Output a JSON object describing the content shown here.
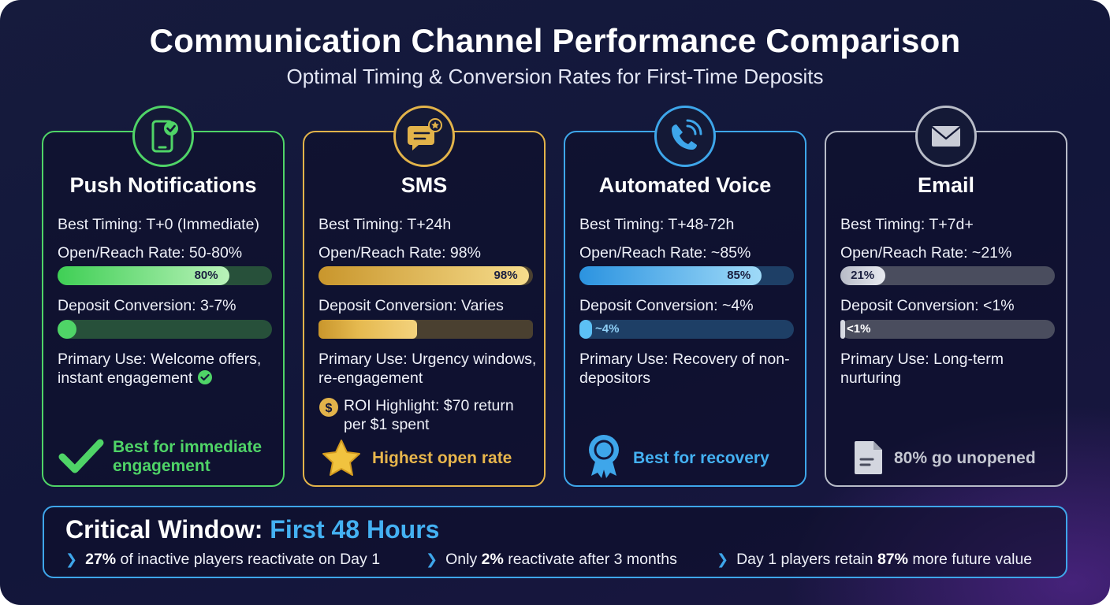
{
  "header": {
    "title": "Communication Channel Performance Comparison",
    "subtitle": "Optimal Timing & Conversion Rates for First-Time Deposits"
  },
  "cards": [
    {
      "title": "Push Notifications",
      "icon": "smartphone-check-icon",
      "accent": "#4fd467",
      "timing": "Best Timing: T+0 (Immediate)",
      "open_rate_label": "Open/Reach Rate: 50-80%",
      "open_rate_bar": 80,
      "open_rate_bar_text": "80%",
      "conversion_label": "Deposit Conversion: 3-7%",
      "conversion_bar": 7,
      "conversion_bar_text": "",
      "primary_use": "Primary Use: Welcome offers, instant engagement",
      "footer": "Best for immediate engagement",
      "footer_icon": "checkmark-icon"
    },
    {
      "title": "SMS",
      "icon": "chat-bubble-star-icon",
      "accent": "#e2b34a",
      "timing": "Best Timing: T+24h",
      "open_rate_label": "Open/Reach Rate: 98%",
      "open_rate_bar": 98,
      "open_rate_bar_text": "98%",
      "conversion_label": "Deposit Conversion: Varies",
      "conversion_bar": 46,
      "conversion_bar_text": "",
      "primary_use": "Primary Use: Urgency windows, re-engagement",
      "roi": "ROI Highlight: $70 return per $1 spent",
      "roi_icon": "dollar-coin-icon",
      "footer": "Highest open rate",
      "footer_icon": "star-icon"
    },
    {
      "title": "Automated Voice",
      "icon": "phone-call-icon",
      "accent": "#3ea6ea",
      "timing": "Best Timing: T+48-72h",
      "open_rate_label": "Open/Reach Rate: ~85%",
      "open_rate_bar": 85,
      "open_rate_bar_text": "85%",
      "conversion_label": "Deposit Conversion: ~4%",
      "conversion_bar": 4,
      "conversion_bar_text": "~4%",
      "primary_use": "Primary Use: Recovery of non-depositors",
      "footer": "Best for recovery",
      "footer_icon": "award-ribbon-icon"
    },
    {
      "title": "Email",
      "icon": "envelope-icon",
      "accent": "#b8bcc8",
      "timing": "Best Timing: T+7d+",
      "open_rate_label": "Open/Reach Rate: ~21%",
      "open_rate_bar": 21,
      "open_rate_bar_text": "21%",
      "conversion_label": "Deposit Conversion: <1%",
      "conversion_bar": 1,
      "conversion_bar_text": "<1%",
      "primary_use": "Primary Use: Long-term nurturing",
      "footer": "80% go unopened",
      "footer_icon": "document-icon"
    }
  ],
  "banner": {
    "title_prefix": "Critical Window: ",
    "title_highlight": "First 48 Hours",
    "facts": [
      {
        "bold": "27%",
        "pre": "",
        "post": " of inactive players reactivate on Day 1"
      },
      {
        "bold": "2%",
        "pre": "Only ",
        "post": " reactivate after 3 months"
      },
      {
        "bold": "87%",
        "pre": "Day 1 players retain ",
        "post": " more future value"
      }
    ]
  }
}
